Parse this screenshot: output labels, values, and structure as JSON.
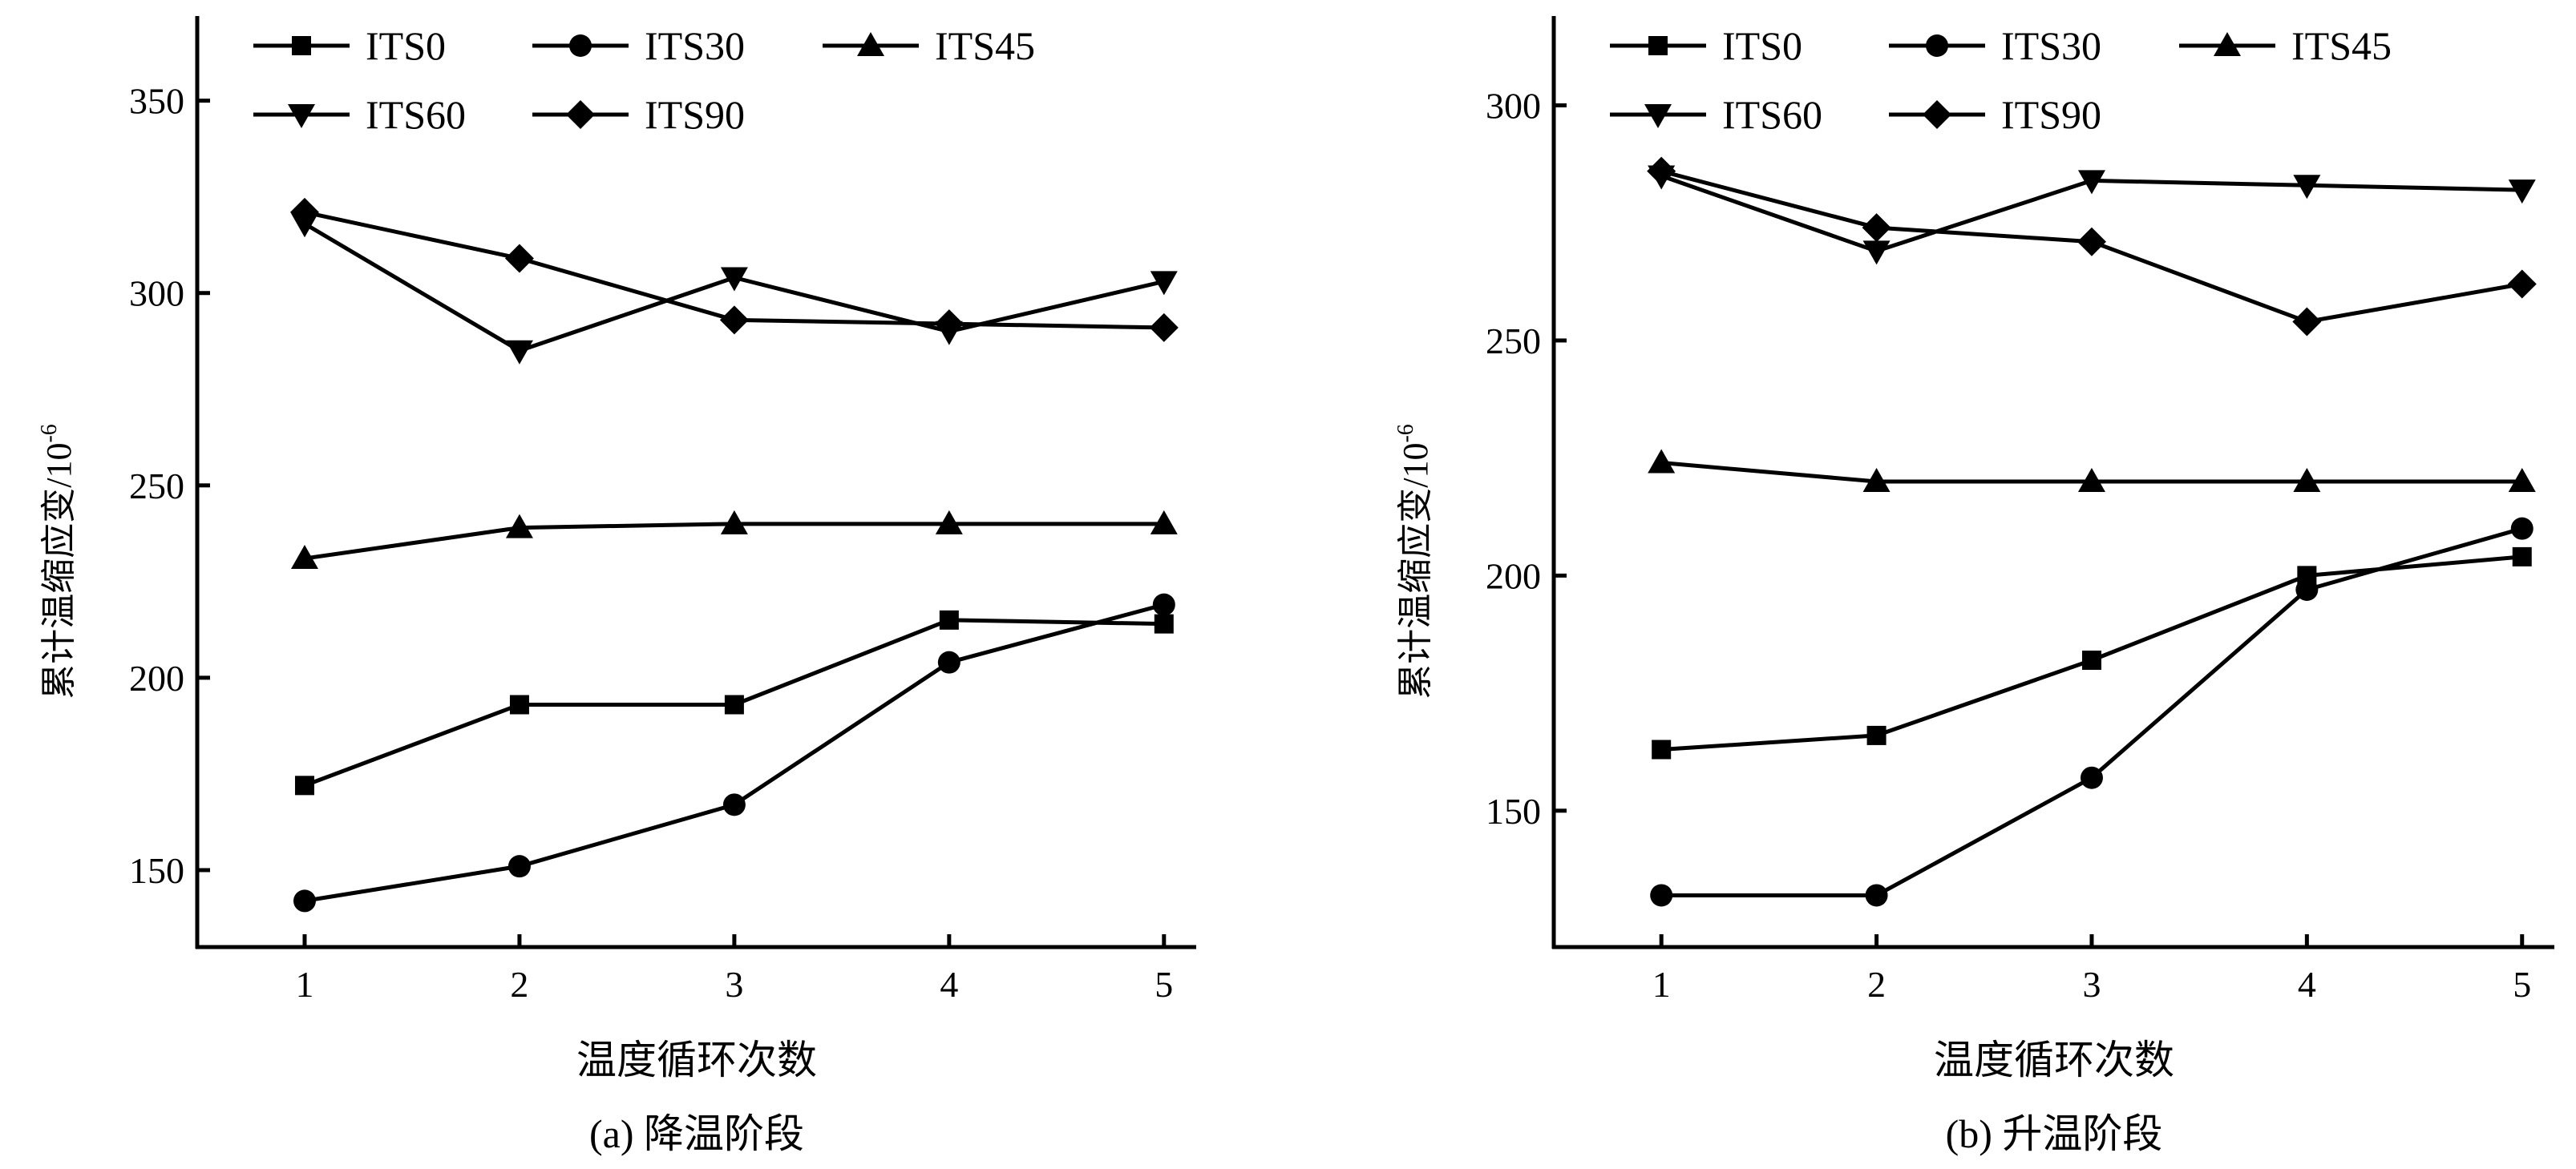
{
  "chart_data": [
    {
      "type": "line",
      "caption": "(a) 降温阶段",
      "xlabel": "温度循环次数",
      "ylabel": "累计温缩应变/10",
      "ylabel_exponent": "-6",
      "x": [
        1,
        2,
        3,
        4,
        5
      ],
      "xticks": [
        "1",
        "2",
        "3",
        "4",
        "5"
      ],
      "yticks": [
        "150",
        "200",
        "250",
        "300",
        "350"
      ],
      "xlim": [
        0.5,
        5.15
      ],
      "ylim": [
        130,
        372
      ],
      "grid": false,
      "legend_position": "top-left",
      "series": [
        {
          "name": "ITS0",
          "marker": "square",
          "values": [
            172,
            193,
            193,
            215,
            214
          ]
        },
        {
          "name": "ITS30",
          "marker": "circle",
          "values": [
            142,
            151,
            167,
            204,
            219
          ]
        },
        {
          "name": "ITS45",
          "marker": "triangle-up",
          "values": [
            231,
            239,
            240,
            240,
            240
          ]
        },
        {
          "name": "ITS60",
          "marker": "triangle-down",
          "values": [
            318,
            285,
            304,
            290,
            303
          ]
        },
        {
          "name": "ITS90",
          "marker": "diamond",
          "values": [
            321,
            309,
            293,
            292,
            291
          ]
        }
      ]
    },
    {
      "type": "line",
      "caption": "(b) 升温阶段",
      "xlabel": "温度循环次数",
      "ylabel": "累计温缩应变/10",
      "ylabel_exponent": "-6",
      "x": [
        1,
        2,
        3,
        4,
        5
      ],
      "xticks": [
        "1",
        "2",
        "3",
        "4",
        "5"
      ],
      "yticks": [
        "150",
        "200",
        "250",
        "300"
      ],
      "xlim": [
        0.5,
        5.15
      ],
      "ylim": [
        121,
        319
      ],
      "grid": false,
      "legend_position": "top-left",
      "series": [
        {
          "name": "ITS0",
          "marker": "square",
          "values": [
            163,
            166,
            182,
            200,
            204
          ]
        },
        {
          "name": "ITS30",
          "marker": "circle",
          "values": [
            132,
            132,
            157,
            197,
            210
          ]
        },
        {
          "name": "ITS45",
          "marker": "triangle-up",
          "values": [
            224,
            220,
            220,
            220,
            220
          ]
        },
        {
          "name": "ITS60",
          "marker": "triangle-down",
          "values": [
            285,
            269,
            284,
            283,
            282
          ]
        },
        {
          "name": "ITS90",
          "marker": "diamond",
          "values": [
            286,
            274,
            271,
            254,
            262
          ]
        }
      ]
    }
  ]
}
